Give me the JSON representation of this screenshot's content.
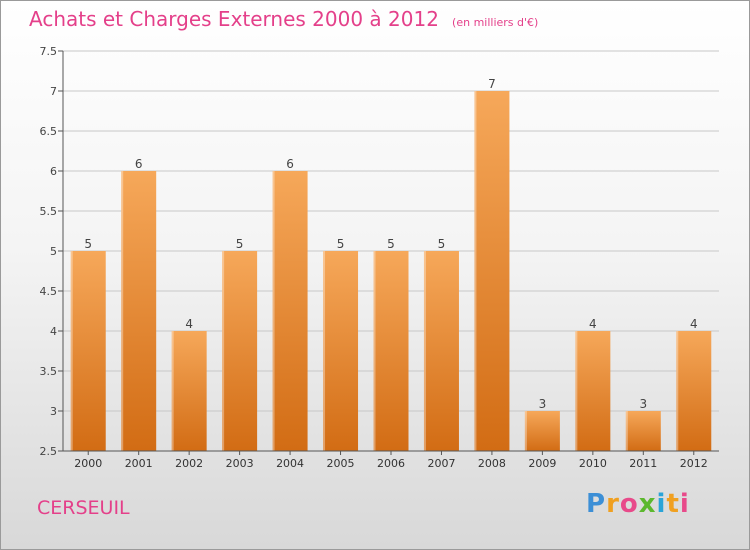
{
  "header": {
    "title": "Achats et Charges Externes 2000 à 2012",
    "subtitle": "(en milliers d'€)"
  },
  "footer": {
    "commune": "CERSEUIL",
    "logo_letters": [
      "P",
      "r",
      "o",
      "x",
      "i",
      "t",
      "i"
    ],
    "logo_colors": [
      "#3c8fd6",
      "#f0a020",
      "#e84a8a",
      "#5cb82e",
      "#2aa4d8",
      "#f0a020",
      "#e84a8a"
    ]
  },
  "colors": {
    "bar_top": "#f6a85a",
    "bar_bottom": "#d26c14",
    "axis": "#555555",
    "grid": "#c8c8c8",
    "title": "#e4408a"
  },
  "chart_data": {
    "type": "bar",
    "categories": [
      "2000",
      "2001",
      "2002",
      "2003",
      "2004",
      "2005",
      "2006",
      "2007",
      "2008",
      "2009",
      "2010",
      "2011",
      "2012"
    ],
    "values": [
      5,
      6,
      4,
      5,
      6,
      5,
      5,
      5,
      7,
      3,
      4,
      3,
      4
    ],
    "data_labels": [
      "5",
      "6",
      "4",
      "5",
      "6",
      "5",
      "5",
      "5",
      "7",
      "3",
      "4",
      "3",
      "4"
    ],
    "title": "Achats et Charges Externes 2000 à 2012",
    "ylim": [
      2.5,
      7.5
    ],
    "yticks": [
      2.5,
      3,
      3.5,
      4,
      4.5,
      5,
      5.5,
      6,
      6.5,
      7,
      7.5
    ],
    "ytick_labels": [
      "2.5",
      "3",
      "3.5",
      "4",
      "4.5",
      "5",
      "5.5",
      "6",
      "6.5",
      "7",
      "7.5"
    ],
    "grid": true,
    "legend": false
  }
}
